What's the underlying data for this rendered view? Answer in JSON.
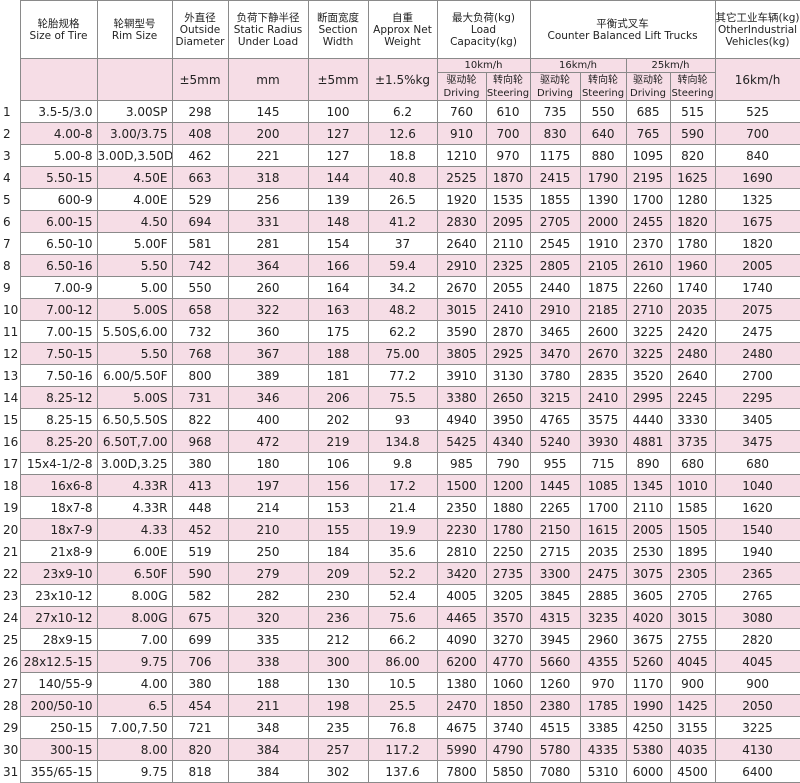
{
  "header": {
    "columns": [
      {
        "zh": "轮胎规格",
        "en": "Size of Tire"
      },
      {
        "zh": "轮辋型号",
        "en": "Rim Size"
      },
      {
        "zh": "外直径",
        "en": "Outside Diameter"
      },
      {
        "zh": "负荷下静半径",
        "en": "Static Radius Under Load"
      },
      {
        "zh": "断面宽度",
        "en": "Section Width"
      },
      {
        "zh": "自重",
        "en": "Approx Net Weight"
      }
    ],
    "load_capacity": {
      "zh": "最大负荷(kg)",
      "en": "Load Capacity(kg)"
    },
    "counter_balanced": {
      "zh": "平衡式叉车",
      "en": "Counter Balanced Lift Trucks"
    },
    "other": {
      "zh": "其它工业车辆(kg)",
      "en": "OtherIndustrial Vehicles(kg)"
    }
  },
  "units": [
    "±5mm",
    "mm",
    "±5mm",
    "±1.5%kg"
  ],
  "speeds": [
    "10km/h",
    "16km/h",
    "25km/h",
    "16km/h"
  ],
  "wheels": {
    "driving_zh": "驱动轮",
    "driving_en": "Driving",
    "steering_zh": "转向轮",
    "steering_en": "Steering"
  },
  "rows": [
    [
      "1",
      "3.5-5/3.0",
      "3.00SP",
      "298",
      "145",
      "100",
      "6.2",
      "760",
      "610",
      "735",
      "550",
      "685",
      "515",
      "525"
    ],
    [
      "2",
      "4.00-8",
      "3.00/3.75",
      "408",
      "200",
      "127",
      "12.6",
      "910",
      "700",
      "830",
      "640",
      "765",
      "590",
      "700"
    ],
    [
      "3",
      "5.00-8",
      "3.00D,3.50D",
      "462",
      "221",
      "127",
      "18.8",
      "1210",
      "970",
      "1175",
      "880",
      "1095",
      "820",
      "840"
    ],
    [
      "4",
      "5.50-15",
      "4.50E",
      "663",
      "318",
      "144",
      "40.8",
      "2525",
      "1870",
      "2415",
      "1790",
      "2195",
      "1625",
      "1690"
    ],
    [
      "5",
      "600-9",
      "4.00E",
      "529",
      "256",
      "139",
      "26.5",
      "1920",
      "1535",
      "1855",
      "1390",
      "1700",
      "1280",
      "1325"
    ],
    [
      "6",
      "6.00-15",
      "4.50",
      "694",
      "331",
      "148",
      "41.2",
      "2830",
      "2095",
      "2705",
      "2000",
      "2455",
      "1820",
      "1675"
    ],
    [
      "7",
      "6.50-10",
      "5.00F",
      "581",
      "281",
      "154",
      "37",
      "2640",
      "2110",
      "2545",
      "1910",
      "2370",
      "1780",
      "1820"
    ],
    [
      "8",
      "6.50-16",
      "5.50",
      "742",
      "364",
      "166",
      "59.4",
      "2910",
      "2325",
      "2805",
      "2105",
      "2610",
      "1960",
      "2005"
    ],
    [
      "9",
      "7.00-9",
      "5.00",
      "550",
      "260",
      "164",
      "34.2",
      "2670",
      "2055",
      "2440",
      "1875",
      "2260",
      "1740",
      "1740"
    ],
    [
      "10",
      "7.00-12",
      "5.00S",
      "658",
      "322",
      "163",
      "48.2",
      "3015",
      "2410",
      "2910",
      "2185",
      "2710",
      "2035",
      "2075"
    ],
    [
      "11",
      "7.00-15",
      "5.50S,6.00",
      "732",
      "360",
      "175",
      "62.2",
      "3590",
      "2870",
      "3465",
      "2600",
      "3225",
      "2420",
      "2475"
    ],
    [
      "12",
      "7.50-15",
      "5.50",
      "768",
      "367",
      "188",
      "75.00",
      "3805",
      "2925",
      "3470",
      "2670",
      "3225",
      "2480",
      "2480"
    ],
    [
      "13",
      "7.50-16",
      "6.00/5.50F",
      "800",
      "389",
      "181",
      "77.2",
      "3910",
      "3130",
      "3780",
      "2835",
      "3520",
      "2640",
      "2700"
    ],
    [
      "14",
      "8.25-12",
      "5.00S",
      "731",
      "346",
      "206",
      "75.5",
      "3380",
      "2650",
      "3215",
      "2410",
      "2995",
      "2245",
      "2295"
    ],
    [
      "15",
      "8.25-15",
      "6.50,5.50S",
      "822",
      "400",
      "202",
      "93",
      "4940",
      "3950",
      "4765",
      "3575",
      "4440",
      "3330",
      "3405"
    ],
    [
      "16",
      "8.25-20",
      "6.50T,7.00",
      "968",
      "472",
      "219",
      "134.8",
      "5425",
      "4340",
      "5240",
      "3930",
      "4881",
      "3735",
      "3475"
    ],
    [
      "17",
      "15x4-1/2-8",
      "3.00D,3.25",
      "380",
      "180",
      "106",
      "9.8",
      "985",
      "790",
      "955",
      "715",
      "890",
      "680",
      "680"
    ],
    [
      "18",
      "16x6-8",
      "4.33R",
      "413",
      "197",
      "156",
      "17.2",
      "1500",
      "1200",
      "1445",
      "1085",
      "1345",
      "1010",
      "1040"
    ],
    [
      "19",
      "18x7-8",
      "4.33R",
      "448",
      "214",
      "153",
      "21.4",
      "2350",
      "1880",
      "2265",
      "1700",
      "2110",
      "1585",
      "1620"
    ],
    [
      "20",
      "18x7-9",
      "4.33",
      "452",
      "210",
      "155",
      "19.9",
      "2230",
      "1780",
      "2150",
      "1615",
      "2005",
      "1505",
      "1540"
    ],
    [
      "21",
      "21x8-9",
      "6.00E",
      "519",
      "250",
      "184",
      "35.6",
      "2810",
      "2250",
      "2715",
      "2035",
      "2530",
      "1895",
      "1940"
    ],
    [
      "22",
      "23x9-10",
      "6.50F",
      "590",
      "279",
      "209",
      "52.2",
      "3420",
      "2735",
      "3300",
      "2475",
      "3075",
      "2305",
      "2365"
    ],
    [
      "23",
      "23x10-12",
      "8.00G",
      "582",
      "282",
      "230",
      "52.4",
      "4005",
      "3205",
      "3845",
      "2885",
      "3605",
      "2705",
      "2765"
    ],
    [
      "24",
      "27x10-12",
      "8.00G",
      "675",
      "320",
      "236",
      "75.6",
      "4465",
      "3570",
      "4315",
      "3235",
      "4020",
      "3015",
      "3080"
    ],
    [
      "25",
      "28x9-15",
      "7.00",
      "699",
      "335",
      "212",
      "66.2",
      "4090",
      "3270",
      "3945",
      "2960",
      "3675",
      "2755",
      "2820"
    ],
    [
      "26",
      "28x12.5-15",
      "9.75",
      "706",
      "338",
      "300",
      "86.00",
      "6200",
      "4770",
      "5660",
      "4355",
      "5260",
      "4045",
      "4045"
    ],
    [
      "27",
      "140/55-9",
      "4.00",
      "380",
      "188",
      "130",
      "10.5",
      "1380",
      "1060",
      "1260",
      "970",
      "1170",
      "900",
      "900"
    ],
    [
      "28",
      "200/50-10",
      "6.5",
      "454",
      "211",
      "198",
      "25.5",
      "2470",
      "1850",
      "2380",
      "1785",
      "1990",
      "1425",
      "2050"
    ],
    [
      "29",
      "250-15",
      "7.00,7.50",
      "721",
      "348",
      "235",
      "76.8",
      "4675",
      "3740",
      "4515",
      "3385",
      "4250",
      "3155",
      "3225"
    ],
    [
      "30",
      "300-15",
      "8.00",
      "820",
      "384",
      "257",
      "117.2",
      "5990",
      "4790",
      "5780",
      "4335",
      "5380",
      "4035",
      "4130"
    ],
    [
      "31",
      "355/65-15",
      "9.75",
      "818",
      "384",
      "302",
      "137.6",
      "7800",
      "5850",
      "7080",
      "5310",
      "6000",
      "4500",
      "6400"
    ]
  ]
}
